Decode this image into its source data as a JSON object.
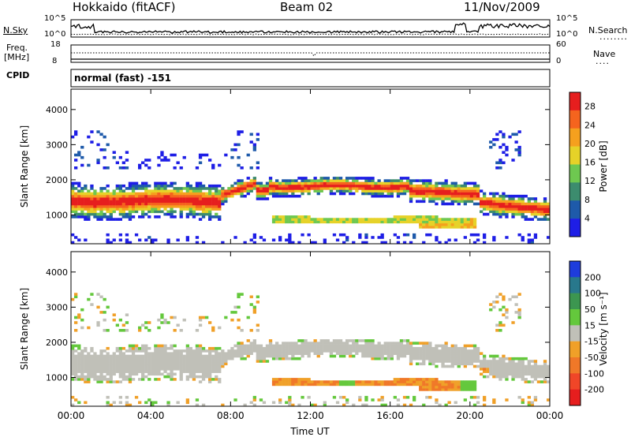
{
  "header": {
    "station": "Hokkaido (fitACF)",
    "beam": "Beam 02",
    "date": "11/Nov/2009"
  },
  "top_panels": {
    "nsky_label": "N.Sky",
    "nsearch_label": "N.Search",
    "noise_ticks": [
      "10^5",
      "10^0"
    ],
    "freq_label_line1": "Freq.",
    "freq_label_line2": "[MHz]",
    "freq_ticks": [
      "18",
      "8"
    ],
    "nave_label": "Nave",
    "nave_ticks": [
      "60",
      "0"
    ],
    "cpid_label": "CPID",
    "cpid_value": "normal (fast) -151"
  },
  "chart_data": [
    {
      "type": "heatmap",
      "name": "power",
      "ylabel": "Slant Range [km]",
      "xlabel": "",
      "x_ticks": [
        "00:00",
        "04:00",
        "08:00",
        "12:00",
        "16:00",
        "20:00",
        "00:00"
      ],
      "x_range_hours": [
        0,
        24
      ],
      "y_ticks": [
        1000,
        2000,
        3000,
        4000
      ],
      "ylim": [
        180,
        4580
      ],
      "colorbar": {
        "label": "Power [dB]",
        "ticks": [
          4,
          8,
          12,
          16,
          20,
          24,
          28
        ],
        "range": [
          0,
          31
        ],
        "colors": [
          "#1e1ee6",
          "#1e5aaa",
          "#3c8c6e",
          "#6ec850",
          "#e6d228",
          "#f5a01e",
          "#f5641e",
          "#e61e1e"
        ]
      }
    },
    {
      "type": "heatmap",
      "name": "velocity",
      "ylabel": "Slant Range [km]",
      "xlabel": "Time UT",
      "x_ticks": [
        "00:00",
        "04:00",
        "08:00",
        "12:00",
        "16:00",
        "20:00",
        "00:00"
      ],
      "x_range_hours": [
        0,
        24
      ],
      "y_ticks": [
        1000,
        2000,
        3000,
        4000
      ],
      "ylim": [
        180,
        4580
      ],
      "colorbar": {
        "label": "Velocity [m s⁻¹]",
        "ticks": [
          200,
          100,
          50,
          15,
          -15,
          -50,
          -100,
          -200
        ],
        "colors": [
          "#1e3cdc",
          "#28788c",
          "#3c9650",
          "#64c83c",
          "#c0c0b8",
          "#f0a028",
          "#f07828",
          "#f04628",
          "#e61e1e"
        ]
      }
    }
  ]
}
